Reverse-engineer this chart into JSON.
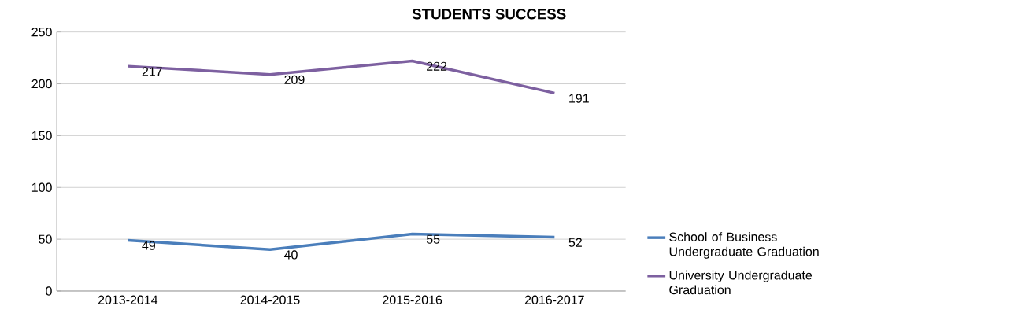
{
  "chart_data": {
    "type": "line",
    "title": "STUDENTS SUCCESS",
    "categories": [
      "2013-2014",
      "2014-2015",
      "2015-2016",
      "2016-2017"
    ],
    "series": [
      {
        "name": "School of Business Undergraduate Graduation",
        "color": "#4a7ebb",
        "values": [
          49,
          40,
          55,
          52
        ]
      },
      {
        "name": "University Undergraduate Graduation",
        "color": "#7d60a0",
        "values": [
          217,
          209,
          222,
          191
        ]
      }
    ],
    "ylim": [
      0,
      250
    ],
    "yticks": [
      0,
      50,
      100,
      150,
      200,
      250
    ],
    "grid": "y",
    "legend": "right",
    "data_labels": true
  }
}
